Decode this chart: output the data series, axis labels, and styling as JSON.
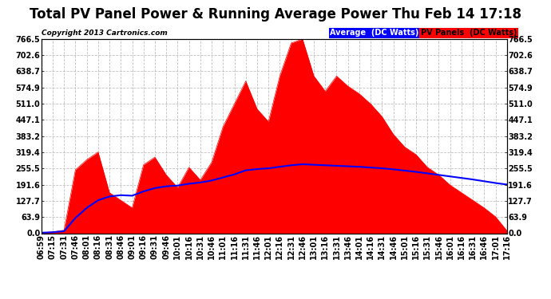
{
  "title": "Total PV Panel Power & Running Average Power Thu Feb 14 17:18",
  "copyright": "Copyright 2013 Cartronics.com",
  "legend_avg": "Average  (DC Watts)",
  "legend_pv": "PV Panels  (DC Watts)",
  "ymax": 766.5,
  "ymin": 0.0,
  "yticks": [
    0.0,
    63.9,
    127.7,
    191.6,
    255.5,
    319.4,
    383.2,
    447.1,
    511.0,
    574.9,
    638.7,
    702.6,
    766.5
  ],
  "background_color": "#ffffff",
  "plot_bg_color": "#ffffff",
  "grid_color": "#bbbbbb",
  "fill_color": "#ff0000",
  "line_color": "#0000ff",
  "title_fontsize": 12,
  "tick_fontsize": 7,
  "x_times": [
    "06:59",
    "07:15",
    "07:31",
    "07:46",
    "08:01",
    "08:16",
    "08:31",
    "08:46",
    "09:01",
    "09:16",
    "09:31",
    "09:46",
    "10:01",
    "10:16",
    "10:31",
    "10:46",
    "11:01",
    "11:16",
    "11:31",
    "11:46",
    "12:01",
    "12:16",
    "12:31",
    "12:46",
    "13:01",
    "13:16",
    "13:31",
    "13:46",
    "14:01",
    "14:16",
    "14:31",
    "14:46",
    "15:01",
    "15:16",
    "15:31",
    "15:46",
    "16:01",
    "16:16",
    "16:31",
    "16:46",
    "17:01",
    "17:16"
  ],
  "pv_values": [
    2,
    5,
    12,
    250,
    290,
    320,
    160,
    130,
    100,
    270,
    300,
    230,
    180,
    260,
    210,
    280,
    420,
    510,
    600,
    490,
    440,
    620,
    750,
    766,
    620,
    560,
    620,
    580,
    550,
    510,
    460,
    390,
    340,
    310,
    260,
    230,
    190,
    160,
    130,
    100,
    65,
    10
  ],
  "avg_values": [
    2,
    4,
    8,
    60,
    100,
    130,
    145,
    150,
    148,
    165,
    178,
    185,
    188,
    195,
    200,
    208,
    220,
    232,
    248,
    253,
    256,
    262,
    268,
    272,
    270,
    268,
    266,
    264,
    262,
    259,
    256,
    252,
    247,
    242,
    236,
    230,
    224,
    218,
    212,
    205,
    198,
    192
  ]
}
